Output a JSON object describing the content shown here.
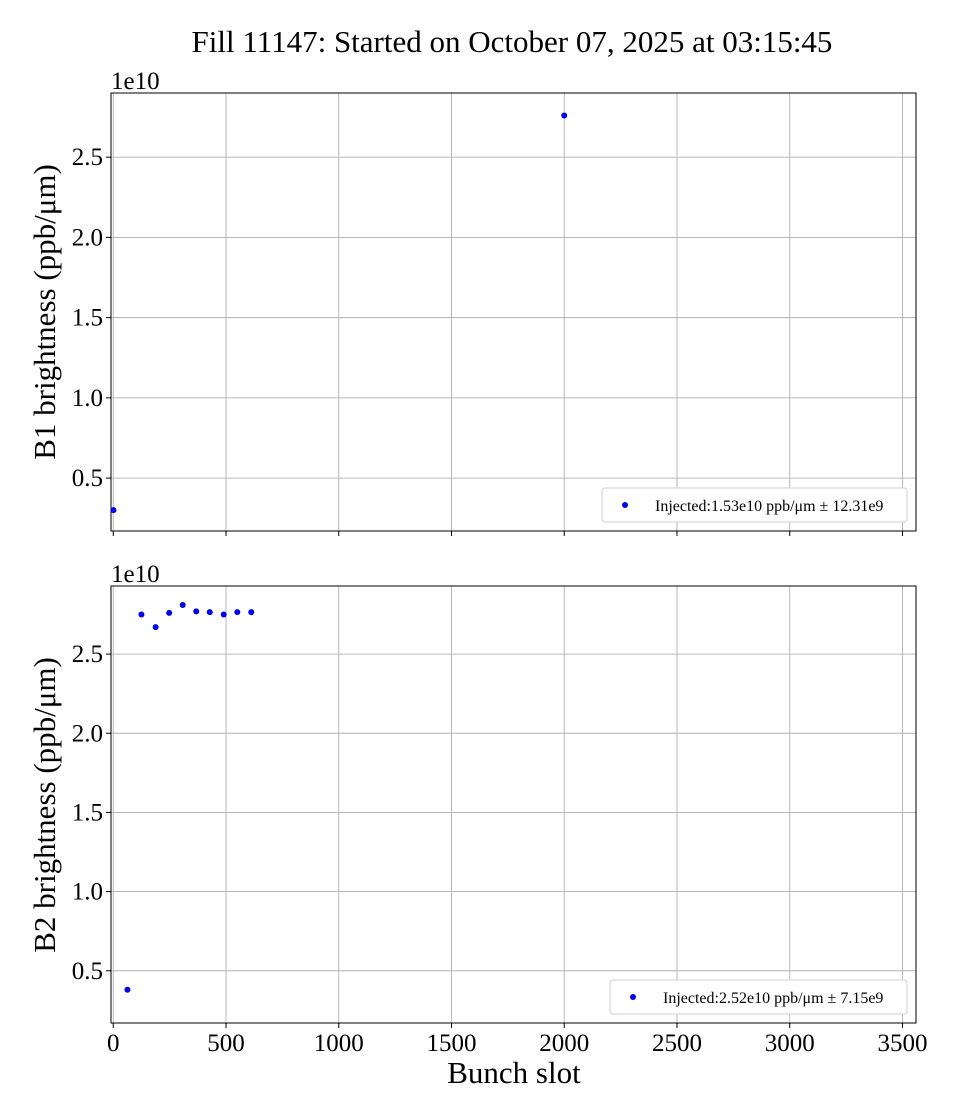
{
  "title": "Fill 11147: Started on October 07, 2025 at 03:15:45",
  "colors": {
    "marker": "#0000ee",
    "grid": "#b0b0b0"
  },
  "chart_data": [
    {
      "type": "scatter",
      "ylabel": "B1 brightness (ppb/μm)",
      "xlabel": "",
      "multiplier": "1e10",
      "xlim": [
        -10,
        3560
      ],
      "ylim": [
        0.17,
        2.9
      ],
      "grid": true,
      "legend_position": "lower-right",
      "x_ticks": [
        0,
        500,
        1000,
        1500,
        2000,
        2500,
        3000,
        3500
      ],
      "x_tick_labels": [
        "",
        "",
        "",
        "",
        "",
        "",
        "",
        ""
      ],
      "y_ticks": [
        0.5,
        1.0,
        1.5,
        2.0,
        2.5
      ],
      "y_tick_labels": [
        "0.5",
        "1.0",
        "1.5",
        "2.0",
        "2.5"
      ],
      "series": [
        {
          "name": "Injected:1.53e10 ppb/μm ± 12.31e9",
          "points": [
            {
              "x": 1,
              "y": 0.3
            },
            {
              "x": 2000,
              "y": 2.76
            }
          ]
        }
      ]
    },
    {
      "type": "scatter",
      "ylabel": "B2 brightness (ppb/μm)",
      "xlabel": "Bunch slot",
      "multiplier": "1e10",
      "xlim": [
        -10,
        3560
      ],
      "ylim": [
        0.17,
        2.93
      ],
      "grid": true,
      "legend_position": "lower-right",
      "x_ticks": [
        0,
        500,
        1000,
        1500,
        2000,
        2500,
        3000,
        3500
      ],
      "x_tick_labels": [
        "0",
        "500",
        "1000",
        "1500",
        "2000",
        "2500",
        "3000",
        "3500"
      ],
      "y_ticks": [
        0.5,
        1.0,
        1.5,
        2.0,
        2.5
      ],
      "y_tick_labels": [
        "0.5",
        "1.0",
        "1.5",
        "2.0",
        "2.5"
      ],
      "series": [
        {
          "name": "Injected:2.52e10 ppb/μm ± 7.15e9",
          "points": [
            {
              "x": 63,
              "y": 0.38
            },
            {
              "x": 125,
              "y": 2.75
            },
            {
              "x": 188,
              "y": 2.67
            },
            {
              "x": 248,
              "y": 2.76
            },
            {
              "x": 308,
              "y": 2.81
            },
            {
              "x": 368,
              "y": 2.77
            },
            {
              "x": 428,
              "y": 2.765
            },
            {
              "x": 490,
              "y": 2.75
            },
            {
              "x": 550,
              "y": 2.765
            },
            {
              "x": 612,
              "y": 2.765
            }
          ]
        }
      ]
    }
  ]
}
